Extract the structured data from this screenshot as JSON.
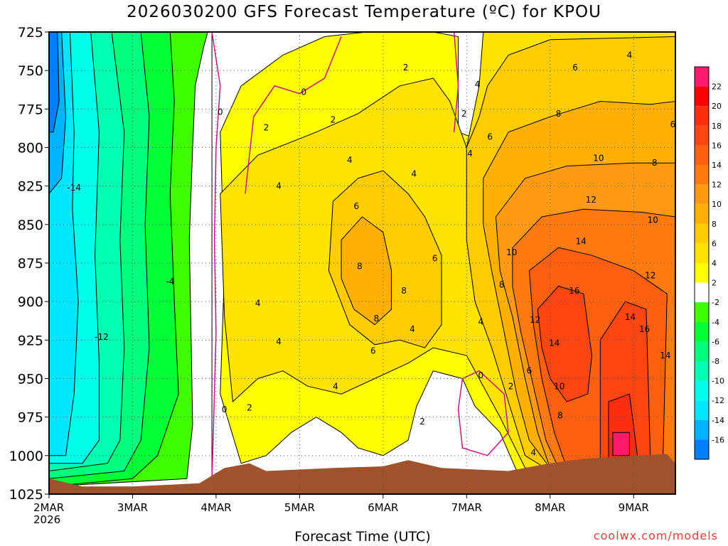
{
  "chart_data": {
    "type": "heatmap",
    "title": "2026030200 GFS Forecast Temperature (ºC) for KPOU",
    "xlabel": "Forecast Time (UTC)",
    "ylabel": "",
    "credit": "coolwx.com/models",
    "x_tick_labels": [
      "2MAR",
      "3MAR",
      "4MAR",
      "5MAR",
      "6MAR",
      "7MAR",
      "8MAR",
      "9MAR"
    ],
    "x_year_label": "2026",
    "x_range_days": [
      2.0,
      9.5
    ],
    "y_tick_labels": [
      "725",
      "750",
      "775",
      "800",
      "825",
      "850",
      "875",
      "900",
      "925",
      "950",
      "975",
      "1000",
      "1025"
    ],
    "y_range_hpa": [
      725,
      1025
    ],
    "colorbar_ticks": [
      "22",
      "20",
      "18",
      "16",
      "14",
      "12",
      "10",
      "8",
      "6",
      "4",
      "2",
      "-2",
      "-4",
      "-6",
      "-8",
      "-10",
      "-12",
      "-14",
      "-16"
    ],
    "contour_labels": [
      {
        "text": "-14",
        "day": 2.3,
        "p": 826
      },
      {
        "text": "-12",
        "day": 2.63,
        "p": 923
      },
      {
        "text": "-4",
        "day": 3.45,
        "p": 887
      },
      {
        "text": "0",
        "day": 4.05,
        "p": 777
      },
      {
        "text": "0",
        "day": 4.1,
        "p": 970
      },
      {
        "text": "2",
        "day": 4.4,
        "p": 969
      },
      {
        "text": "2",
        "day": 4.6,
        "p": 787
      },
      {
        "text": "4",
        "day": 4.75,
        "p": 825
      },
      {
        "text": "4",
        "day": 4.5,
        "p": 901
      },
      {
        "text": "4",
        "day": 4.75,
        "p": 926
      },
      {
        "text": "0",
        "day": 5.05,
        "p": 764
      },
      {
        "text": "2",
        "day": 5.4,
        "p": 782
      },
      {
        "text": "2",
        "day": 6.27,
        "p": 748
      },
      {
        "text": "4",
        "day": 5.6,
        "p": 808
      },
      {
        "text": "4",
        "day": 5.43,
        "p": 955
      },
      {
        "text": "6",
        "day": 5.68,
        "p": 838
      },
      {
        "text": "6",
        "day": 5.88,
        "p": 932
      },
      {
        "text": "8",
        "day": 5.72,
        "p": 877
      },
      {
        "text": "8",
        "day": 5.92,
        "p": 911
      },
      {
        "text": "8",
        "day": 6.25,
        "p": 893
      },
      {
        "text": "4",
        "day": 6.37,
        "p": 817
      },
      {
        "text": "4",
        "day": 6.35,
        "p": 918
      },
      {
        "text": "6",
        "day": 6.62,
        "p": 872
      },
      {
        "text": "2",
        "day": 6.47,
        "p": 978
      },
      {
        "text": "2",
        "day": 6.97,
        "p": 778
      },
      {
        "text": "4",
        "day": 7.13,
        "p": 759
      },
      {
        "text": "4",
        "day": 7.04,
        "p": 804
      },
      {
        "text": "4",
        "day": 7.17,
        "p": 913
      },
      {
        "text": "0",
        "day": 7.17,
        "p": 948
      },
      {
        "text": "2",
        "day": 7.53,
        "p": 955
      },
      {
        "text": "6",
        "day": 7.28,
        "p": 793
      },
      {
        "text": "8",
        "day": 7.42,
        "p": 889
      },
      {
        "text": "10",
        "day": 7.54,
        "p": 868
      },
      {
        "text": "6",
        "day": 8.3,
        "p": 748
      },
      {
        "text": "8",
        "day": 8.1,
        "p": 778
      },
      {
        "text": "10",
        "day": 8.58,
        "p": 807
      },
      {
        "text": "12",
        "day": 8.49,
        "p": 834
      },
      {
        "text": "14",
        "day": 8.37,
        "p": 861
      },
      {
        "text": "16",
        "day": 8.29,
        "p": 893
      },
      {
        "text": "12",
        "day": 7.82,
        "p": 912
      },
      {
        "text": "14",
        "day": 8.05,
        "p": 927
      },
      {
        "text": "6",
        "day": 7.75,
        "p": 945
      },
      {
        "text": "10",
        "day": 8.11,
        "p": 955
      },
      {
        "text": "8",
        "day": 8.12,
        "p": 974
      },
      {
        "text": "4",
        "day": 7.8,
        "p": 998
      },
      {
        "text": "8",
        "day": 9.25,
        "p": 810
      },
      {
        "text": "10",
        "day": 9.23,
        "p": 847
      },
      {
        "text": "12",
        "day": 9.2,
        "p": 883
      },
      {
        "text": "14",
        "day": 8.96,
        "p": 910
      },
      {
        "text": "16",
        "day": 9.13,
        "p": 918
      },
      {
        "text": "14",
        "day": 9.38,
        "p": 935
      },
      {
        "text": "6",
        "day": 9.47,
        "p": 785
      },
      {
        "text": "4",
        "day": 8.95,
        "p": 740
      }
    ],
    "colors": {
      "ground": "#a0522d",
      "gt22": "#ff1a6e",
      "20_22": "#ff0000",
      "18_20": "#ff2e10",
      "16_18": "#ff4512",
      "14_16": "#ff6010",
      "12_14": "#ff7a10",
      "10_12": "#ff9a12",
      "8_10": "#ffb000",
      "6_8": "#ffcc00",
      "4_6": "#ffe300",
      "2_4": "#ffff00",
      "neg2_2": "#ffffff",
      "neg4_neg2": "#40ff00",
      "neg6_neg4": "#00ff36",
      "neg8_neg6": "#00ff7a",
      "neg10_neg8": "#00ffb0",
      "neg12_neg10": "#00ffe8",
      "neg14_neg12": "#00e6ff",
      "neg16_neg14": "#00b3ff",
      "lt_neg16": "#0080ff",
      "zero_contour": "#c71585",
      "credit": "#e23c3c"
    }
  }
}
